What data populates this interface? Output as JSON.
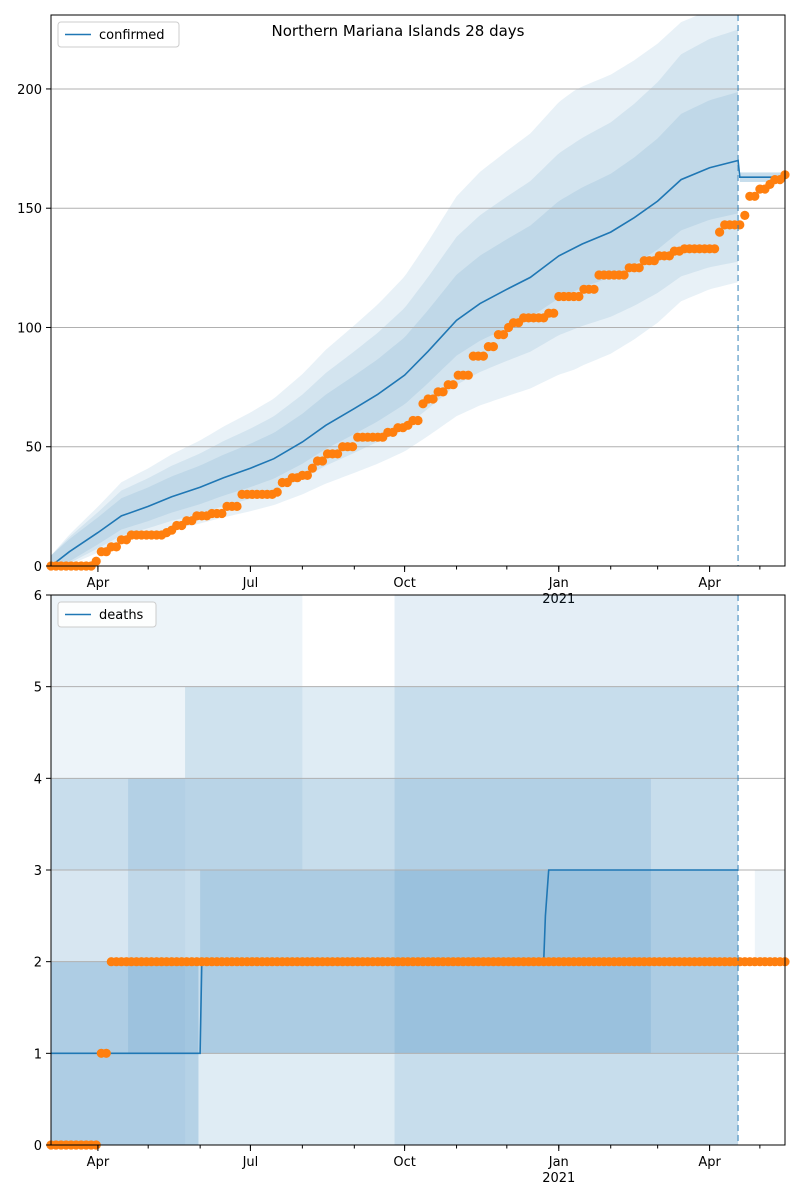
{
  "figure_title": "Northern Mariana Islands 28 days",
  "colors": {
    "model_line": "#1f77b4",
    "observed_points": "#ff7f0e",
    "band_fill": "#1f77b4",
    "grid": "#b0b0b0"
  },
  "chart_data": [
    {
      "type": "line",
      "title": "Northern Mariana Islands 28 days",
      "legend": [
        "confirmed"
      ],
      "legend_position": "top-left",
      "grid": "horizontal",
      "xlabel": "",
      "ylabel": "",
      "x_ticks": [
        {
          "date": "2020-04-01",
          "label": "Apr",
          "sublabel": ""
        },
        {
          "date": "2020-07-01",
          "label": "Jul",
          "sublabel": ""
        },
        {
          "date": "2020-10-01",
          "label": "Oct",
          "sublabel": ""
        },
        {
          "date": "2021-01-01",
          "label": "Jan",
          "sublabel": "2021"
        },
        {
          "date": "2021-04-01",
          "label": "Apr",
          "sublabel": ""
        }
      ],
      "xlim": [
        "2020-03-04",
        "2021-05-16"
      ],
      "ylim": [
        0,
        231
      ],
      "y_ticks": [
        0,
        50,
        100,
        150,
        200
      ],
      "forecast_start": "2021-04-18",
      "series": [
        {
          "name": "confirmed",
          "kind": "model_median",
          "x": [
            "2020-03-04",
            "2020-03-15",
            "2020-04-01",
            "2020-04-15",
            "2020-05-01",
            "2020-05-15",
            "2020-06-01",
            "2020-06-15",
            "2020-07-01",
            "2020-07-15",
            "2020-08-01",
            "2020-08-15",
            "2020-09-01",
            "2020-09-15",
            "2020-10-01",
            "2020-10-15",
            "2020-11-01",
            "2020-11-15",
            "2020-12-01",
            "2020-12-15",
            "2021-01-01",
            "2021-01-15",
            "2021-02-01",
            "2021-02-15",
            "2021-03-01",
            "2021-03-15",
            "2021-04-01",
            "2021-04-18",
            "2021-04-19",
            "2021-05-16"
          ],
          "values": [
            0,
            6,
            14,
            21,
            25,
            29,
            33,
            37,
            41,
            45,
            52,
            59,
            66,
            72,
            80,
            90,
            103,
            110,
            116,
            121,
            130,
            135,
            140,
            146,
            153,
            162,
            167,
            170,
            163,
            163
          ]
        },
        {
          "name": "",
          "kind": "observed",
          "x": [
            "2020-03-04",
            "2020-03-30",
            "2020-03-31",
            "2020-04-03",
            "2020-04-09",
            "2020-04-15",
            "2020-04-20",
            "2020-05-10",
            "2020-05-13",
            "2020-05-18",
            "2020-05-23",
            "2020-05-30",
            "2020-06-08",
            "2020-06-12",
            "2020-06-15",
            "2020-06-25",
            "2020-07-05",
            "2020-07-10",
            "2020-07-15",
            "2020-07-20",
            "2020-07-25",
            "2020-08-01",
            "2020-08-05",
            "2020-08-10",
            "2020-08-15",
            "2020-08-25",
            "2020-09-01",
            "2020-09-05",
            "2020-09-10",
            "2020-09-20",
            "2020-09-25",
            "2020-10-01",
            "2020-10-05",
            "2020-10-10",
            "2020-10-15",
            "2020-10-20",
            "2020-10-25",
            "2020-11-01",
            "2020-11-10",
            "2020-11-20",
            "2020-11-25",
            "2020-12-01",
            "2020-12-05",
            "2020-12-10",
            "2020-12-15",
            "2020-12-25",
            "2021-01-01",
            "2021-01-10",
            "2021-01-15",
            "2021-01-25",
            "2021-02-01",
            "2021-02-10",
            "2021-02-20",
            "2021-03-01",
            "2021-03-10",
            "2021-03-15",
            "2021-03-25",
            "2021-04-05",
            "2021-04-10",
            "2021-04-15",
            "2021-04-20",
            "2021-04-25",
            "2021-05-01",
            "2021-05-05",
            "2021-05-10",
            "2021-05-16"
          ],
          "values": [
            0,
            0,
            2,
            6,
            8,
            11,
            13,
            14,
            15,
            17,
            19,
            21,
            22,
            22,
            25,
            30,
            30,
            30,
            31,
            35,
            37,
            38,
            41,
            44,
            47,
            50,
            54,
            54,
            54,
            56,
            58,
            59,
            61,
            68,
            70,
            73,
            76,
            80,
            88,
            92,
            97,
            100,
            102,
            104,
            104,
            106,
            113,
            113,
            116,
            122,
            122,
            125,
            128,
            130,
            132,
            133,
            133,
            140,
            143,
            143,
            147,
            155,
            158,
            160,
            162,
            164
          ]
        }
      ]
    },
    {
      "type": "line",
      "title": "",
      "legend": [
        "deaths"
      ],
      "legend_position": "top-left",
      "grid": "horizontal",
      "xlabel": "",
      "ylabel": "",
      "x_ticks": [
        {
          "date": "2020-04-01",
          "label": "Apr",
          "sublabel": ""
        },
        {
          "date": "2020-07-01",
          "label": "Jul",
          "sublabel": ""
        },
        {
          "date": "2020-10-01",
          "label": "Oct",
          "sublabel": ""
        },
        {
          "date": "2021-01-01",
          "label": "Jan",
          "sublabel": "2021"
        },
        {
          "date": "2021-04-01",
          "label": "Apr",
          "sublabel": ""
        }
      ],
      "xlim": [
        "2020-03-04",
        "2021-05-16"
      ],
      "ylim": [
        0,
        6
      ],
      "y_ticks": [
        0,
        1,
        2,
        3,
        4,
        5,
        6
      ],
      "forecast_start": "2021-04-18",
      "series": [
        {
          "name": "deaths",
          "kind": "model_median",
          "x": [
            "2020-03-04",
            "2020-06-01",
            "2020-06-02",
            "2020-12-23",
            "2020-12-24",
            "2020-12-26",
            "2021-04-18"
          ],
          "values": [
            1,
            1,
            2,
            2,
            2.5,
            3,
            3
          ]
        },
        {
          "name": "",
          "kind": "observed",
          "x": [
            "2020-03-04",
            "2020-03-31",
            "2020-04-01",
            "2020-04-06",
            "2020-04-07",
            "2021-05-16"
          ],
          "values": [
            0,
            0,
            1,
            1,
            2,
            2
          ]
        }
      ]
    }
  ]
}
